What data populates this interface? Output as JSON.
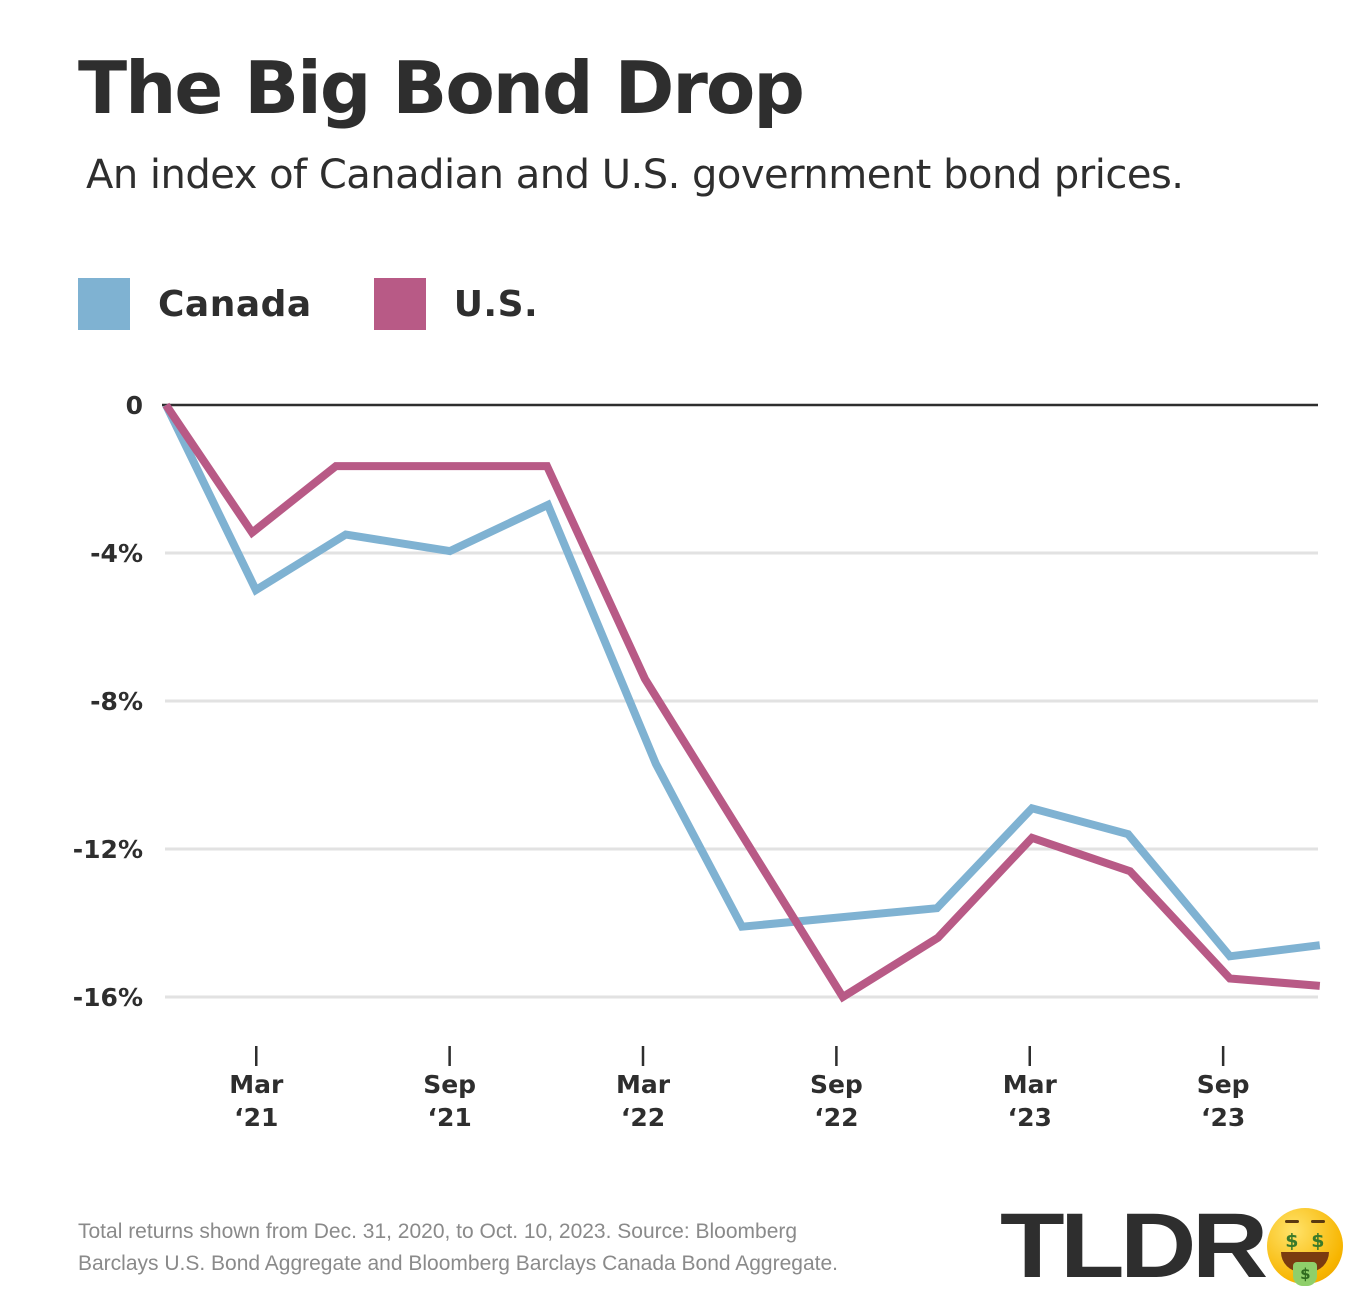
{
  "header": {
    "title": "The Big Bond Drop",
    "subtitle": "An index of Canadian and U.S. government bond prices."
  },
  "legend": [
    {
      "label": "Canada",
      "color": "#7fb2d2"
    },
    {
      "label": "U.S.",
      "color": "#b85a86"
    }
  ],
  "chart_data": {
    "type": "line",
    "title": "The Big Bond Drop",
    "subtitle": "An index of Canadian and U.S. government bond prices.",
    "xlabel": "",
    "ylabel": "",
    "x_unit": "months since Dec. 31, 2020",
    "xlim": [
      0,
      35.8
    ],
    "ylim": [
      -16,
      0
    ],
    "yticks": [
      0,
      -4,
      -8,
      -12,
      -16
    ],
    "ytick_labels": [
      "0",
      "-4%",
      "-8%",
      "-12%",
      "-16%"
    ],
    "xticks": [
      2.8,
      8.8,
      14.8,
      20.8,
      26.8,
      32.8
    ],
    "xtick_labels": [
      {
        "month": "Mar",
        "year": "‘21"
      },
      {
        "month": "Sep",
        "year": "‘21"
      },
      {
        "month": "Mar",
        "year": "‘22"
      },
      {
        "month": "Sep",
        "year": "‘22"
      },
      {
        "month": "Mar",
        "year": "‘23"
      },
      {
        "month": "Sep",
        "year": "‘23"
      }
    ],
    "grid": true,
    "legend_position": "top-left",
    "series": [
      {
        "name": "Canada",
        "color": "#7fb2d2",
        "x": [
          0,
          2.79,
          5.58,
          8.81,
          11.85,
          15.2,
          17.87,
          23.92,
          26.87,
          29.85,
          33.01,
          35.8
        ],
        "values": [
          0,
          -5.0,
          -3.5,
          -3.95,
          -2.7,
          -9.7,
          -14.1,
          -13.6,
          -10.9,
          -11.6,
          -14.9,
          -14.6
        ]
      },
      {
        "name": "U.S.",
        "color": "#b85a86",
        "x": [
          0,
          2.67,
          5.27,
          11.82,
          14.86,
          21.0,
          23.95,
          26.87,
          29.91,
          33.01,
          35.8
        ],
        "values": [
          0,
          -3.45,
          -1.65,
          -1.65,
          -7.4,
          -16.0,
          -14.4,
          -11.7,
          -12.6,
          -15.5,
          -15.7
        ]
      }
    ]
  },
  "footnote": {
    "line1": "Total returns shown from Dec. 31, 2020, to Oct. 10, 2023. Source: Bloomberg",
    "line2": "Barclays U.S. Bond Aggregate and Bloomberg Barclays Canada Bond Aggregate."
  },
  "logo": {
    "text": "TLDR",
    "emoji": "money-mouth-face-icon",
    "emoji_eye": "$",
    "emoji_tongue": "$"
  }
}
